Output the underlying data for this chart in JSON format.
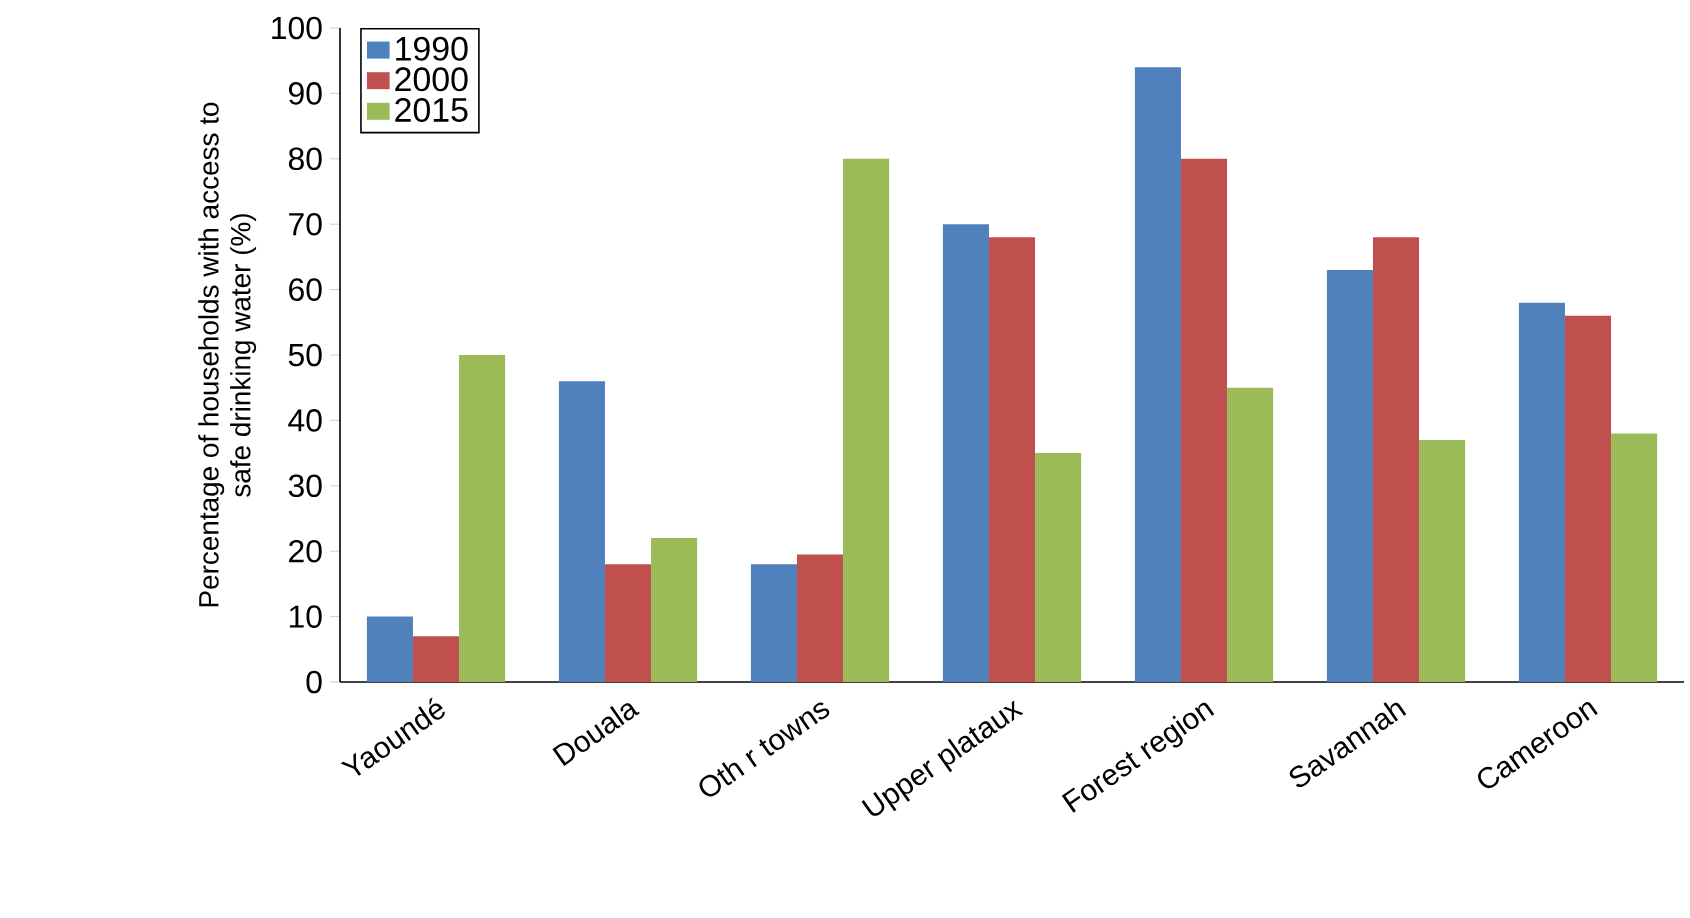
{
  "chart_data": {
    "type": "bar",
    "ylabel": "Percentage of households with access to safe drinking water (%)",
    "categories": [
      "Yaoundé",
      "Douala",
      "Oth r towns",
      "Upper plataux",
      "Forest region",
      "Savannah",
      "Cameroon"
    ],
    "series": [
      {
        "name": "1990",
        "color": "#4f81bd",
        "values": [
          10,
          46,
          18,
          70,
          94,
          63,
          58
        ]
      },
      {
        "name": "2000",
        "color": "#c0504d",
        "values": [
          7,
          18,
          19.5,
          68,
          80,
          68,
          56
        ]
      },
      {
        "name": "2015",
        "color": "#9bbb59",
        "values": [
          50,
          22,
          80,
          35,
          45,
          37,
          38
        ]
      }
    ],
    "ylim": [
      0,
      100
    ],
    "yticks": [
      0,
      10,
      20,
      30,
      40,
      50,
      60,
      70,
      80,
      90,
      100
    ],
    "grid": false,
    "legend": "top left"
  }
}
